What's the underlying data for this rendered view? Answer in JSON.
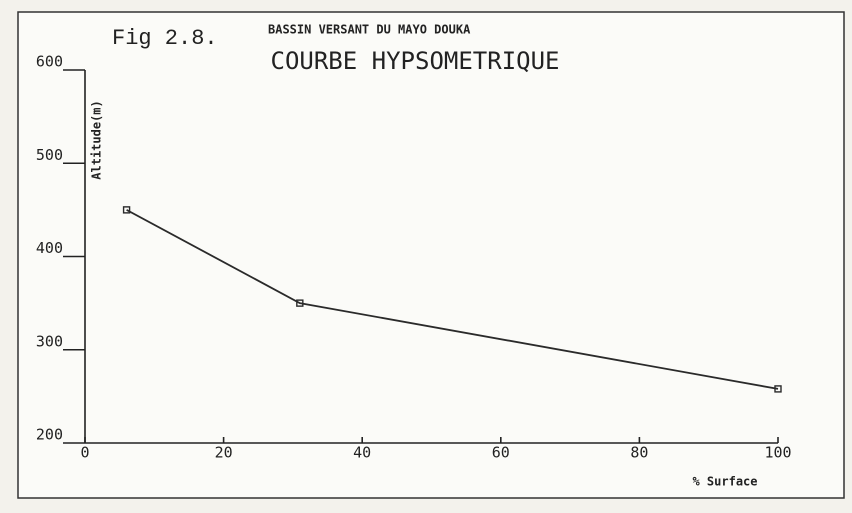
{
  "chart_data": {
    "type": "line",
    "figure_label": "Fig 2.8.",
    "subtitle": "BASSIN VERSANT DU MAYO DOUKA",
    "title": "COURBE HYPSOMETRIQUE",
    "y_label": "Altitude(m)",
    "x_label": "% Surface",
    "x": [
      6,
      31,
      100
    ],
    "values": [
      450,
      350,
      258
    ],
    "color": "#2a2a2a",
    "xlim": [
      0,
      100
    ],
    "xticks": [
      0,
      20,
      40,
      60,
      80,
      100
    ],
    "ylim": [
      200,
      600
    ],
    "yticks": [
      200,
      300,
      400,
      500,
      600
    ],
    "grid": false
  }
}
